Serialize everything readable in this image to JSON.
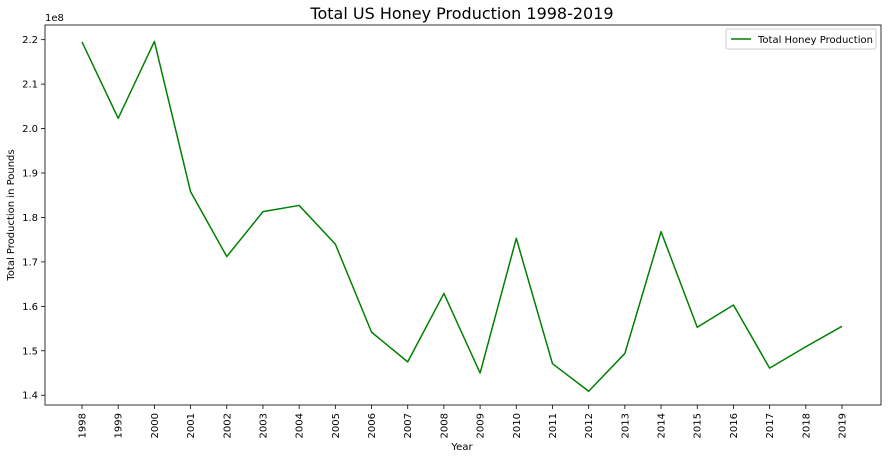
{
  "chart_data": {
    "type": "line",
    "title": "Total US Honey Production 1998-2019",
    "xlabel": "Year",
    "ylabel": "Total Production in Pounds",
    "y_offset_label": "1e8",
    "x": [
      "1998",
      "1999",
      "2000",
      "2001",
      "2002",
      "2003",
      "2004",
      "2005",
      "2006",
      "2007",
      "2008",
      "2009",
      "2010",
      "2011",
      "2012",
      "2013",
      "2014",
      "2015",
      "2016",
      "2017",
      "2018",
      "2019"
    ],
    "series": [
      {
        "name": "Total Honey Production",
        "color": "#008000",
        "values": [
          219.5,
          202.3,
          219.6,
          185.8,
          171.2,
          181.3,
          182.7,
          174.0,
          154.2,
          147.5,
          162.9,
          145.0,
          175.3,
          147.1,
          140.9,
          149.4,
          176.8,
          155.3,
          160.3,
          146.1,
          150.9,
          155.5
        ]
      }
    ],
    "y_unit_multiplier": 1000000,
    "yticks": [
      "1.4",
      "1.5",
      "1.6",
      "1.7",
      "1.8",
      "1.9",
      "2.0",
      "2.1",
      "2.2"
    ],
    "ylim": [
      137.8,
      223.3
    ],
    "legend_position": "top-right",
    "grid": false
  }
}
